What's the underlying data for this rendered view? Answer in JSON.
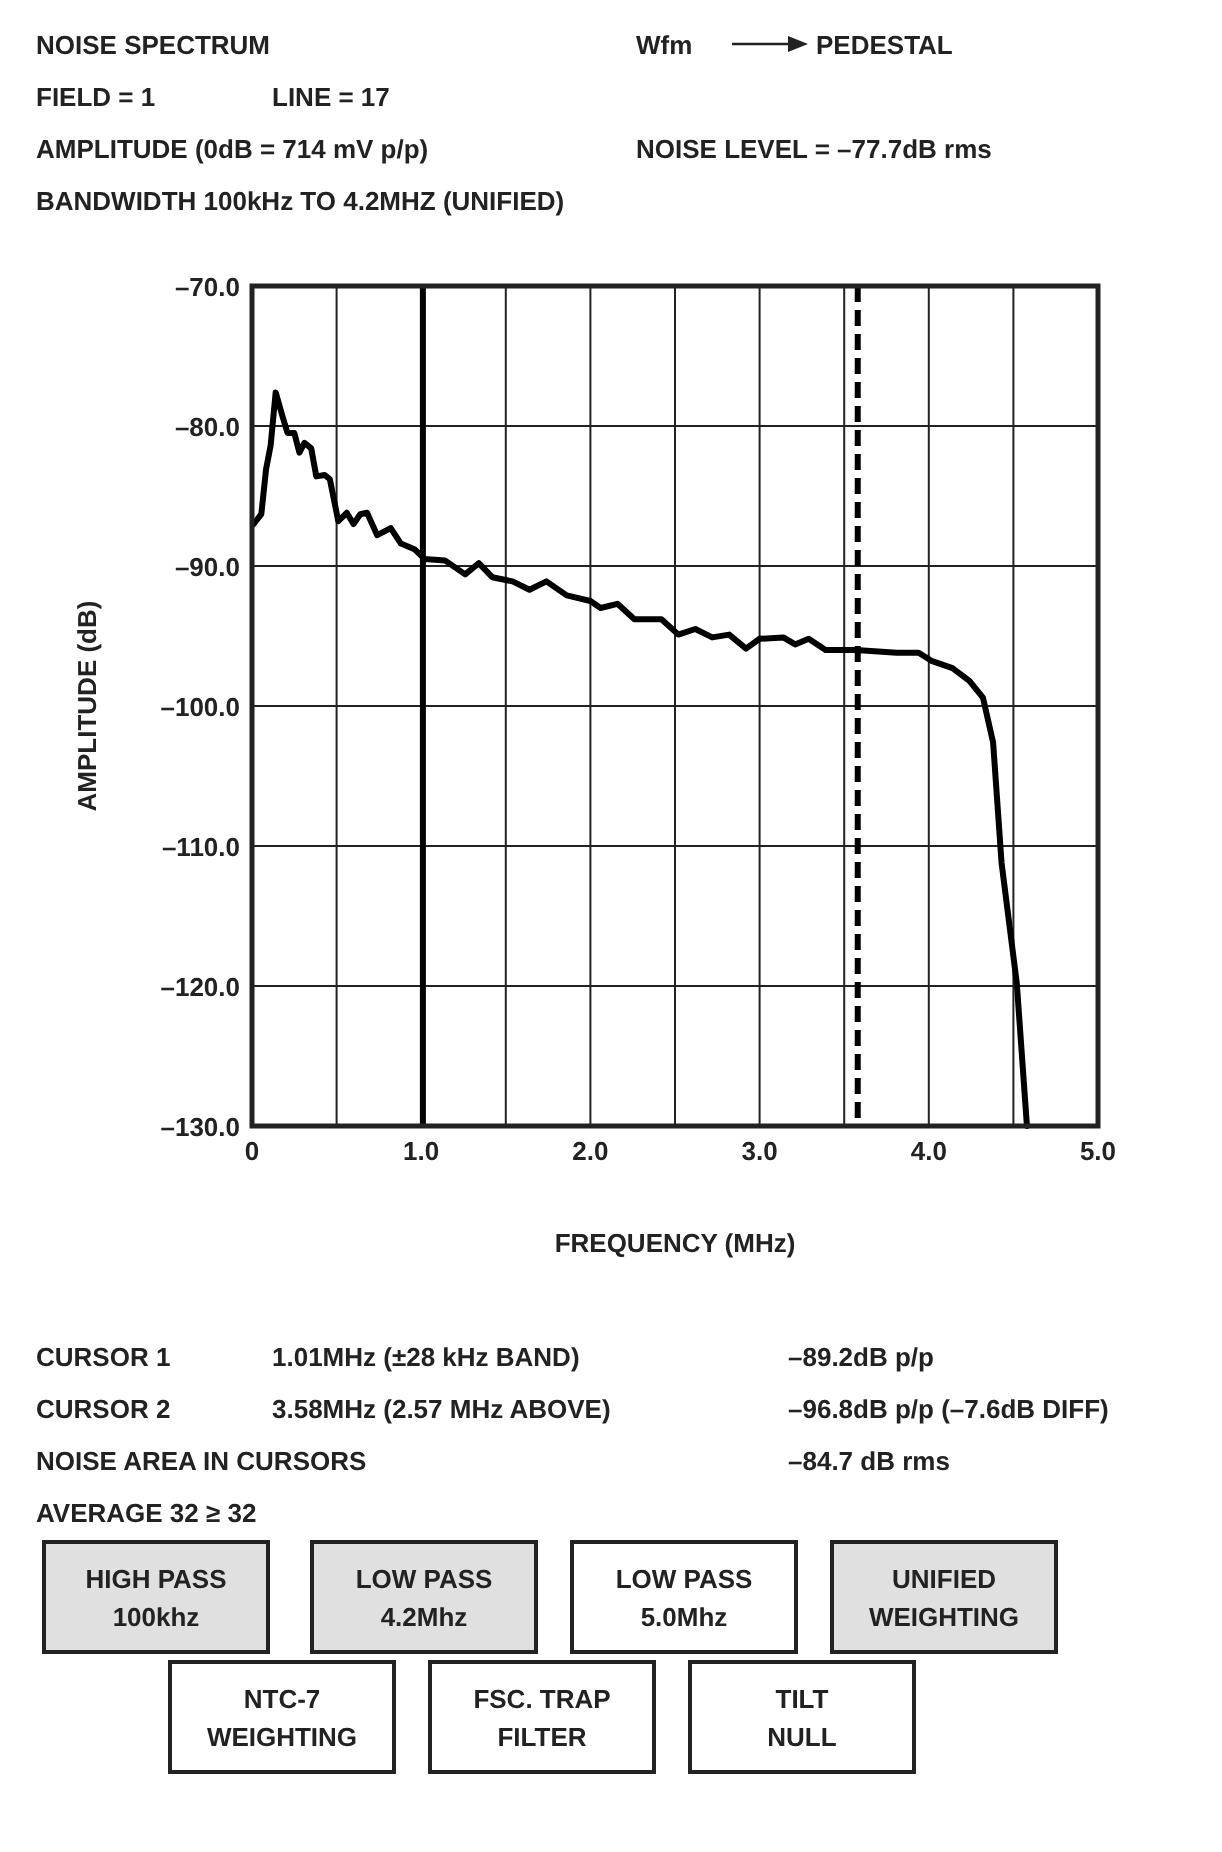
{
  "chart_data": {
    "type": "line",
    "title": "NOISE SPECTRUM",
    "xlabel": "FREQUENCY (MHz)",
    "ylabel": "AMPLITUDE (dB)",
    "annotations": [
      "FIELD = 1",
      "LINE = 17",
      "AMPLITUDE (0dB = 714 mV p/p)",
      "NOISE LEVEL =  –77.7dB rms",
      "BANDWIDTH 100kHz TO 4.2MHZ (UNIFIED)",
      "Wfm",
      "PEDESTAL",
      "CURSOR 1",
      "1.01MHz (±28 kHz BAND)",
      "–89.2dB p/p",
      "CURSOR 2",
      "3.58MHz (2.57 MHz ABOVE)",
      "–96.8dB p/p (–7.6dB DIFF)",
      "NOISE AREA IN CURSORS",
      "–84.7 dB rms",
      "AVERAGE 32 ≥ 32",
      "HIGH PASS\n100khz",
      "LOW PASS\n4.2Mhz",
      "LOW PASS\n5.0Mhz",
      "UNIFIED\nWEIGHTING",
      "NTC-7\nWEIGHTING",
      "FSC. TRAP\nFILTER",
      "TILT\nNULL"
    ],
    "x": [
      0.01,
      0.055,
      0.083,
      0.11,
      0.14,
      0.18,
      0.21,
      0.25,
      0.28,
      0.31,
      0.35,
      0.38,
      0.43,
      0.46,
      0.51,
      0.56,
      0.6,
      0.64,
      0.68,
      0.74,
      0.82,
      0.88,
      0.96,
      1.02,
      1.14,
      1.26,
      1.34,
      1.42,
      1.54,
      1.64,
      1.74,
      1.86,
      2.0,
      2.06,
      2.16,
      2.26,
      2.42,
      2.52,
      2.62,
      2.72,
      2.82,
      2.92,
      3.0,
      3.14,
      3.21,
      3.29,
      3.39,
      3.57,
      3.81,
      3.94,
      4.02,
      4.14,
      4.24,
      4.32,
      4.38,
      4.43,
      4.52,
      4.58
    ],
    "series": [
      {
        "color": "#000000",
        "values": [
          -87.0,
          -86.3,
          -83.1,
          -81.4,
          -77.6,
          -79.3,
          -80.5,
          -80.5,
          -81.9,
          -81.2,
          -81.6,
          -83.6,
          -83.5,
          -83.8,
          -86.8,
          -86.2,
          -87.0,
          -86.3,
          -86.2,
          -87.8,
          -87.3,
          -88.4,
          -88.8,
          -89.5,
          -89.6,
          -90.6,
          -89.8,
          -90.8,
          -91.1,
          -91.7,
          -91.1,
          -92.1,
          -92.5,
          -93.0,
          -92.7,
          -93.8,
          -93.8,
          -94.9,
          -94.5,
          -95.1,
          -94.9,
          -95.9,
          -95.2,
          -95.1,
          -95.6,
          -95.2,
          -96.0,
          -96.0,
          -96.2,
          -96.2,
          -96.8,
          -97.3,
          -98.2,
          -99.4,
          -102.6,
          -111.2,
          -119.8,
          -130.0
        ]
      }
    ],
    "xlim": [
      0,
      5
    ],
    "ylim": [
      -130,
      -70
    ],
    "xticks": [
      0,
      {
        "value": 0.5,
        "label": null
      },
      {
        "value": 1,
        "label": "1.0"
      },
      {
        "value": 1.5,
        "label": null
      },
      {
        "value": 2,
        "label": "2.0"
      },
      {
        "value": 2.5,
        "label": null
      },
      {
        "value": 3,
        "label": "3.0"
      },
      {
        "value": 3.5,
        "label": null
      },
      {
        "value": 4,
        "label": "4.0"
      },
      {
        "value": 4.5,
        "label": null
      },
      {
        "value": 5,
        "label": "5.0"
      }
    ],
    "yticks": [
      {
        "value": -130,
        "label": "–130.0"
      },
      {
        "value": -120,
        "label": "–120.0"
      },
      {
        "value": -110,
        "label": "–110.0"
      },
      {
        "value": -100,
        "label": "–100.0"
      },
      {
        "value": -90,
        "label": "–90.0"
      },
      {
        "value": -80,
        "label": "–80.0"
      },
      {
        "value": -70,
        "label": "–70.0"
      }
    ],
    "ref_lines": [
      {
        "axis": "x",
        "value": 1.01,
        "color": "#000000",
        "line_style": "solid"
      },
      {
        "axis": "x",
        "value": 3.58,
        "color": "#000000",
        "line_style": "dashed"
      }
    ],
    "grid": true,
    "line_style": "solid"
  }
}
